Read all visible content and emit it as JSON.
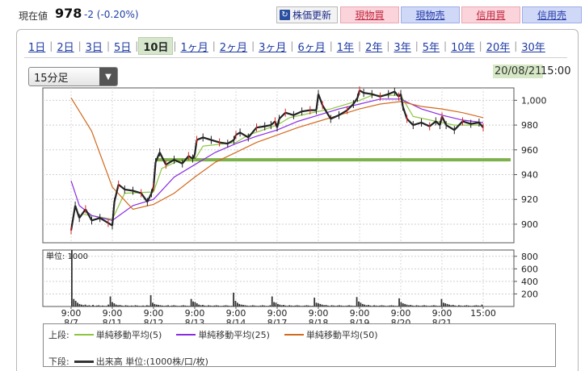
{
  "quote": {
    "label": "現在値",
    "price": "978",
    "change": "-2 (-0.20%)"
  },
  "buttons": {
    "refresh": "株価更新",
    "spot_buy": "現物買",
    "spot_sell": "現物売",
    "margin_buy": "信用買",
    "margin_sell": "信用売"
  },
  "periods": [
    "1日",
    "2日",
    "3日",
    "5日",
    "10日",
    "1ヶ月",
    "2ヶ月",
    "3ヶ月",
    "6ヶ月",
    "1年",
    "2年",
    "3年",
    "5年",
    "10年",
    "20年",
    "30年"
  ],
  "active_period": "10日",
  "interval": {
    "selected": "15分足"
  },
  "timestamp": {
    "date": "20/08/21",
    "time": "15:00"
  },
  "legend": {
    "upper_label": "上段:",
    "lower_label": "下段:",
    "volume_label": "出来高 単位:(1000株/口/枚)"
  },
  "colors": {
    "sma5": "#8cc63f",
    "sma25": "#8a2be2",
    "sma50": "#d2691e",
    "price": "#222222",
    "volume": "#333333",
    "support": "#7db14a"
  },
  "chart_data": [
    {
      "type": "line",
      "title": "",
      "x": [
        "8/7 9:00",
        "8/11 9:00",
        "8/12 9:00",
        "8/13 9:00",
        "8/14 9:00",
        "8/17 9:00",
        "8/18 9:00",
        "8/19 9:00",
        "8/20 9:00",
        "8/21 9:00",
        "8/21 15:00"
      ],
      "x_tick_labels": [
        {
          "time": "9:00",
          "date": "8/7"
        },
        {
          "time": "9:00",
          "date": "8/11"
        },
        {
          "time": "9:00",
          "date": "8/12"
        },
        {
          "time": "9:00",
          "date": "8/13"
        },
        {
          "time": "9:00",
          "date": "8/14"
        },
        {
          "time": "9:00",
          "date": "8/17"
        },
        {
          "time": "9:00",
          "date": "8/18"
        },
        {
          "time": "9:00",
          "date": "8/19"
        },
        {
          "time": "9:00",
          "date": "8/20"
        },
        {
          "time": "9:00",
          "date": "8/21"
        },
        {
          "time": "15:00",
          "date": ""
        }
      ],
      "y_ticks": [
        "900",
        "920",
        "940",
        "960",
        "980",
        "1,000"
      ],
      "ylim": [
        885,
        1010
      ],
      "grid": true,
      "price_path": [
        [
          0.0,
          895
        ],
        [
          0.1,
          915
        ],
        [
          0.2,
          905
        ],
        [
          0.35,
          912
        ],
        [
          0.5,
          903
        ],
        [
          0.7,
          905
        ],
        [
          0.9,
          901
        ],
        [
          1.0,
          899
        ],
        [
          1.05,
          918
        ],
        [
          1.15,
          932
        ],
        [
          1.3,
          928
        ],
        [
          1.5,
          927
        ],
        [
          1.7,
          925
        ],
        [
          1.85,
          918
        ],
        [
          1.95,
          925
        ],
        [
          2.0,
          930
        ],
        [
          2.05,
          950
        ],
        [
          2.15,
          958
        ],
        [
          2.3,
          948
        ],
        [
          2.5,
          952
        ],
        [
          2.7,
          949
        ],
        [
          2.85,
          955
        ],
        [
          2.95,
          953
        ],
        [
          3.0,
          956
        ],
        [
          3.05,
          968
        ],
        [
          3.2,
          970
        ],
        [
          3.4,
          968
        ],
        [
          3.6,
          966
        ],
        [
          3.8,
          965
        ],
        [
          3.95,
          968
        ],
        [
          4.0,
          972
        ],
        [
          4.1,
          974
        ],
        [
          4.3,
          970
        ],
        [
          4.5,
          978
        ],
        [
          4.7,
          979
        ],
        [
          4.85,
          980
        ],
        [
          4.95,
          983
        ],
        [
          5.0,
          978
        ],
        [
          5.05,
          985
        ],
        [
          5.2,
          990
        ],
        [
          5.4,
          988
        ],
        [
          5.6,
          991
        ],
        [
          5.8,
          992
        ],
        [
          5.95,
          992
        ],
        [
          6.0,
          1005
        ],
        [
          6.1,
          996
        ],
        [
          6.3,
          985
        ],
        [
          6.5,
          988
        ],
        [
          6.7,
          992
        ],
        [
          6.85,
          997
        ],
        [
          6.95,
          1002
        ],
        [
          7.0,
          1008
        ],
        [
          7.1,
          1006
        ],
        [
          7.3,
          1005
        ],
        [
          7.5,
          1003
        ],
        [
          7.7,
          1005
        ],
        [
          7.85,
          1007
        ],
        [
          7.95,
          1003
        ],
        [
          8.0,
          1005
        ],
        [
          8.05,
          995
        ],
        [
          8.15,
          985
        ],
        [
          8.3,
          980
        ],
        [
          8.5,
          982
        ],
        [
          8.7,
          979
        ],
        [
          8.85,
          983
        ],
        [
          8.95,
          980
        ],
        [
          9.0,
          987
        ],
        [
          9.1,
          980
        ],
        [
          9.3,
          976
        ],
        [
          9.5,
          983
        ],
        [
          9.7,
          981
        ],
        [
          9.9,
          982
        ],
        [
          10.0,
          978
        ]
      ],
      "series": [
        {
          "name": "単純移動平均(5)",
          "color": "#8cc63f",
          "points": [
            [
              0.3,
              908
            ],
            [
              1.0,
              904
            ],
            [
              1.3,
              925
            ],
            [
              2.0,
              926
            ],
            [
              2.2,
              945
            ],
            [
              2.6,
              951
            ],
            [
              3.0,
              952
            ],
            [
              3.2,
              963
            ],
            [
              4.0,
              966
            ],
            [
              4.3,
              972
            ],
            [
              5.0,
              980
            ],
            [
              5.3,
              986
            ],
            [
              6.0,
              991
            ],
            [
              6.3,
              993
            ],
            [
              7.0,
              1000
            ],
            [
              7.3,
              1004
            ],
            [
              8.0,
              1004
            ],
            [
              8.3,
              987
            ],
            [
              9.0,
              982
            ],
            [
              9.3,
              980
            ],
            [
              10.0,
              980
            ]
          ]
        },
        {
          "name": "単純移動平均(25)",
          "color": "#8a2be2",
          "points": [
            [
              0.0,
              935
            ],
            [
              0.2,
              915
            ],
            [
              0.5,
              907
            ],
            [
              1.0,
              903
            ],
            [
              1.5,
              915
            ],
            [
              2.0,
              920
            ],
            [
              2.5,
              938
            ],
            [
              3.0,
              948
            ],
            [
              3.5,
              958
            ],
            [
              4.0,
              965
            ],
            [
              4.5,
              971
            ],
            [
              5.0,
              976
            ],
            [
              5.5,
              983
            ],
            [
              6.0,
              988
            ],
            [
              6.5,
              993
            ],
            [
              7.0,
              997
            ],
            [
              7.5,
              1001
            ],
            [
              8.0,
              1001
            ],
            [
              8.5,
              993
            ],
            [
              9.0,
              988
            ],
            [
              9.5,
              984
            ],
            [
              10.0,
              982
            ]
          ]
        },
        {
          "name": "単純移動平均(50)",
          "color": "#d2691e",
          "points": [
            [
              0.0,
              1002
            ],
            [
              0.5,
              975
            ],
            [
              1.0,
              930
            ],
            [
              1.5,
              912
            ],
            [
              2.0,
              916
            ],
            [
              2.5,
              925
            ],
            [
              3.0,
              938
            ],
            [
              3.5,
              950
            ],
            [
              4.0,
              958
            ],
            [
              4.5,
              966
            ],
            [
              5.0,
              972
            ],
            [
              5.5,
              978
            ],
            [
              6.0,
              983
            ],
            [
              6.5,
              988
            ],
            [
              7.0,
              993
            ],
            [
              7.5,
              997
            ],
            [
              8.0,
              999
            ],
            [
              8.5,
              995
            ],
            [
              9.0,
              993
            ],
            [
              9.5,
              990
            ],
            [
              10.0,
              986
            ]
          ]
        }
      ],
      "support_line": 952
    },
    {
      "type": "bar",
      "title": "",
      "unit_label": "単位: 1000",
      "y_ticks": [
        "200",
        "400",
        "600",
        "800"
      ],
      "ylim": [
        0,
        900
      ],
      "values": [
        1000,
        120,
        90,
        60,
        40,
        30,
        20,
        30,
        15,
        20,
        10,
        25,
        10,
        15,
        20,
        10,
        15,
        10,
        10,
        30,
        160,
        70,
        50,
        30,
        20,
        25,
        15,
        10,
        20,
        15,
        10,
        15,
        10,
        20,
        15,
        10,
        10,
        15,
        10,
        20,
        15,
        180,
        60,
        40,
        30,
        25,
        20,
        15,
        10,
        15,
        20,
        10,
        15,
        20,
        15,
        10,
        10,
        15,
        20,
        15,
        10,
        10,
        120,
        80,
        70,
        50,
        30,
        20,
        25,
        15,
        10,
        20,
        15,
        10,
        15,
        20,
        15,
        10,
        10,
        15,
        20,
        15,
        10,
        10,
        220,
        90,
        60,
        40,
        30,
        25,
        20,
        15,
        10,
        15,
        20,
        15,
        10,
        10,
        15,
        20,
        15,
        10,
        10,
        20,
        160,
        70,
        60,
        40,
        30,
        20,
        25,
        15,
        10,
        20,
        15,
        10,
        15,
        20,
        15,
        10,
        10,
        15,
        20,
        15,
        10,
        10,
        140,
        60,
        50,
        40,
        30,
        20,
        25,
        15,
        10,
        20,
        15,
        10,
        15,
        20,
        15,
        10,
        10,
        15,
        20,
        15,
        10,
        10,
        150,
        80,
        60,
        40,
        30,
        20,
        25,
        15,
        10,
        20,
        15,
        10,
        15,
        20,
        15,
        10,
        10,
        15,
        20,
        15,
        10,
        10,
        130,
        70,
        50,
        40,
        30,
        20,
        25,
        15,
        10,
        20,
        15,
        10,
        15,
        20,
        15,
        10,
        10,
        15,
        20,
        15,
        10,
        10,
        120,
        60,
        50,
        40,
        30,
        20,
        25,
        15,
        10,
        20,
        15,
        10,
        15,
        20,
        15,
        10,
        10,
        15,
        20,
        15,
        10,
        30
      ]
    }
  ]
}
